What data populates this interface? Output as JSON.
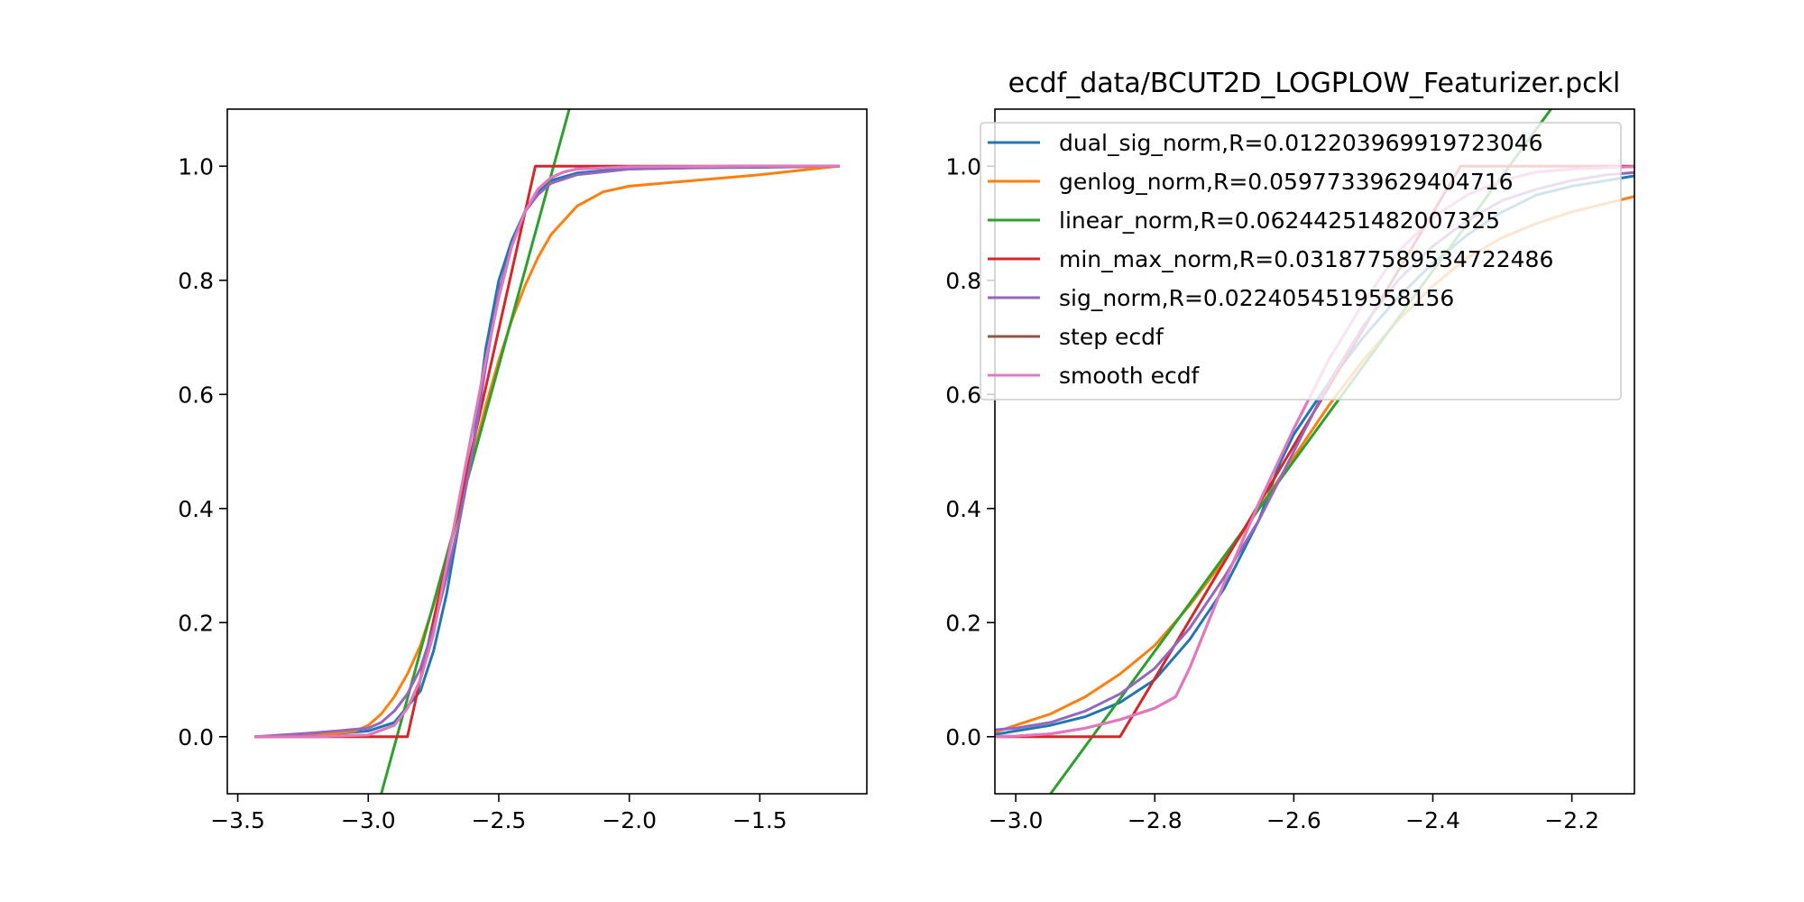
{
  "figure_title": "ecdf_data/BCUT2D_LOGPLOW_Featurizer.pckl",
  "colors": {
    "dual_sig_norm": "#1f77b4",
    "genlog_norm": "#ff7f0e",
    "linear_norm": "#2ca02c",
    "min_max_norm": "#d62728",
    "sig_norm": "#9467bd",
    "step_ecdf": "#8c564b",
    "smooth_ecdf": "#e377c2"
  },
  "chart_data": [
    {
      "type": "line",
      "title": "",
      "xlabel": "",
      "ylabel": "",
      "xlim": [
        -3.54,
        -1.09
      ],
      "ylim": [
        -0.1,
        1.1
      ],
      "xticks": [
        -3.5,
        -3.0,
        -2.5,
        -2.0,
        -1.5
      ],
      "xtick_labels": [
        "−3.5",
        "−3.0",
        "−2.5",
        "−2.0",
        "−1.5"
      ],
      "yticks": [
        0.0,
        0.2,
        0.4,
        0.6,
        0.8,
        1.0
      ],
      "ytick_labels": [
        "0.0",
        "0.2",
        "0.4",
        "0.6",
        "0.8",
        "1.0"
      ],
      "grid": false,
      "series": [
        {
          "key": "dual_sig_norm",
          "color": "#1f77b4",
          "x": [
            -3.43,
            -3.2,
            -3.0,
            -2.9,
            -2.8,
            -2.75,
            -2.7,
            -2.65,
            -2.6,
            -2.55,
            -2.5,
            -2.45,
            -2.4,
            -2.35,
            -2.3,
            -2.2,
            -2.1,
            -2.0,
            -1.8,
            -1.5,
            -1.2
          ],
          "y": [
            0.0,
            0.003,
            0.01,
            0.025,
            0.08,
            0.15,
            0.25,
            0.38,
            0.5,
            0.68,
            0.8,
            0.87,
            0.92,
            0.955,
            0.975,
            0.988,
            0.992,
            0.995,
            0.997,
            0.998,
            1.0
          ]
        },
        {
          "key": "genlog_norm",
          "color": "#ff7f0e",
          "x": [
            -3.43,
            -3.2,
            -3.05,
            -3.0,
            -2.95,
            -2.9,
            -2.85,
            -2.8,
            -2.75,
            -2.7,
            -2.65,
            -2.6,
            -2.55,
            -2.5,
            -2.45,
            -2.4,
            -2.35,
            -2.3,
            -2.2,
            -2.1,
            -2.0,
            -1.5,
            -1.2
          ],
          "y": [
            0.0,
            0.002,
            0.01,
            0.02,
            0.04,
            0.07,
            0.11,
            0.16,
            0.23,
            0.31,
            0.4,
            0.49,
            0.58,
            0.66,
            0.73,
            0.79,
            0.84,
            0.88,
            0.93,
            0.955,
            0.965,
            0.985,
            1.0
          ]
        },
        {
          "key": "linear_norm",
          "color": "#2ca02c",
          "x": [
            -2.95,
            -2.23
          ],
          "y": [
            -0.1,
            1.1
          ]
        },
        {
          "key": "min_max_norm",
          "color": "#d62728",
          "x": [
            -3.43,
            -2.85,
            -2.36,
            -1.2
          ],
          "y": [
            0.0,
            0.0,
            1.0,
            1.0
          ]
        },
        {
          "key": "sig_norm",
          "color": "#9467bd",
          "x": [
            -3.43,
            -3.2,
            -3.0,
            -2.95,
            -2.9,
            -2.85,
            -2.8,
            -2.75,
            -2.7,
            -2.65,
            -2.6,
            -2.55,
            -2.5,
            -2.45,
            -2.4,
            -2.35,
            -2.3,
            -2.2,
            -2.0,
            -1.5,
            -1.2
          ],
          "y": [
            0.0,
            0.007,
            0.015,
            0.025,
            0.045,
            0.075,
            0.12,
            0.19,
            0.28,
            0.38,
            0.5,
            0.65,
            0.78,
            0.86,
            0.92,
            0.95,
            0.97,
            0.985,
            0.995,
            0.999,
            1.0
          ]
        },
        {
          "key": "step_ecdf",
          "color": "#8c564b",
          "x": [
            -3.43,
            -3.2,
            -3.0,
            -2.9,
            -2.85,
            -2.8,
            -2.75,
            -2.7,
            -2.65,
            -2.6,
            -2.55,
            -2.5,
            -2.45,
            -2.4,
            -2.35,
            -2.3,
            -2.25,
            -2.2,
            -2.0,
            -1.5,
            -1.2
          ],
          "y": [
            0.0,
            0.0,
            0.003,
            0.02,
            0.05,
            0.1,
            0.18,
            0.3,
            0.42,
            0.54,
            0.66,
            0.77,
            0.86,
            0.92,
            0.96,
            0.98,
            0.99,
            0.995,
            0.999,
            1.0,
            1.0
          ]
        },
        {
          "key": "smooth_ecdf",
          "color": "#e377c2",
          "x": [
            -3.43,
            -3.2,
            -3.0,
            -2.9,
            -2.85,
            -2.8,
            -2.75,
            -2.7,
            -2.65,
            -2.6,
            -2.55,
            -2.5,
            -2.45,
            -2.4,
            -2.35,
            -2.3,
            -2.25,
            -2.2,
            -2.0,
            -1.5,
            -1.2
          ],
          "y": [
            0.0,
            0.0,
            0.003,
            0.02,
            0.05,
            0.1,
            0.18,
            0.3,
            0.42,
            0.54,
            0.66,
            0.77,
            0.86,
            0.92,
            0.96,
            0.98,
            0.99,
            0.995,
            0.999,
            1.0,
            1.0
          ]
        }
      ]
    },
    {
      "type": "line",
      "title": "ecdf_data/BCUT2D_LOGPLOW_Featurizer.pckl",
      "xlabel": "",
      "ylabel": "",
      "xlim": [
        -3.03,
        -2.11
      ],
      "ylim": [
        -0.1,
        1.1
      ],
      "xticks": [
        -3.0,
        -2.8,
        -2.6,
        -2.4,
        -2.2
      ],
      "xtick_labels": [
        "−3.0",
        "−2.8",
        "−2.6",
        "−2.4",
        "−2.2"
      ],
      "yticks": [
        0.0,
        0.2,
        0.4,
        0.6,
        0.8,
        1.0
      ],
      "ytick_labels": [
        "0.0",
        "0.2",
        "0.4",
        "0.6",
        "0.8",
        "1.0"
      ],
      "grid": false,
      "legend_position": "upper-left",
      "legend": [
        {
          "key": "dual_sig_norm",
          "label": "dual_sig_norm,R=0.012203969919723046",
          "color": "#1f77b4"
        },
        {
          "key": "genlog_norm",
          "label": "genlog_norm,R=0.05977339629404716",
          "color": "#ff7f0e"
        },
        {
          "key": "linear_norm",
          "label": "linear_norm,R=0.06244251482007325",
          "color": "#2ca02c"
        },
        {
          "key": "min_max_norm",
          "label": "min_max_norm,R=0.031877589534722486",
          "color": "#d62728"
        },
        {
          "key": "sig_norm",
          "label": "sig_norm,R=0.0224054519558156",
          "color": "#9467bd"
        },
        {
          "key": "step_ecdf",
          "label": "step ecdf",
          "color": "#8c564b"
        },
        {
          "key": "smooth_ecdf",
          "label": "smooth ecdf",
          "color": "#e377c2"
        }
      ],
      "series": [
        {
          "key": "dual_sig_norm",
          "color": "#1f77b4",
          "x": [
            -3.05,
            -3.0,
            -2.95,
            -2.9,
            -2.85,
            -2.8,
            -2.75,
            -2.7,
            -2.65,
            -2.62,
            -2.6,
            -2.55,
            -2.5,
            -2.45,
            -2.4,
            -2.35,
            -2.3,
            -2.25,
            -2.2,
            -2.15,
            -2.1
          ],
          "y": [
            0.0,
            0.01,
            0.02,
            0.035,
            0.06,
            0.1,
            0.17,
            0.26,
            0.38,
            0.48,
            0.53,
            0.62,
            0.7,
            0.77,
            0.83,
            0.88,
            0.92,
            0.95,
            0.965,
            0.975,
            0.985
          ]
        },
        {
          "key": "genlog_norm",
          "color": "#ff7f0e",
          "x": [
            -3.05,
            -3.0,
            -2.95,
            -2.9,
            -2.85,
            -2.8,
            -2.75,
            -2.7,
            -2.65,
            -2.6,
            -2.55,
            -2.5,
            -2.45,
            -2.4,
            -2.35,
            -2.3,
            -2.25,
            -2.2,
            -2.15,
            -2.1
          ],
          "y": [
            0.0,
            0.02,
            0.04,
            0.07,
            0.11,
            0.16,
            0.23,
            0.31,
            0.4,
            0.49,
            0.58,
            0.66,
            0.73,
            0.79,
            0.84,
            0.875,
            0.9,
            0.92,
            0.935,
            0.95
          ]
        },
        {
          "key": "linear_norm",
          "color": "#2ca02c",
          "x": [
            -2.95,
            -2.23
          ],
          "y": [
            -0.1,
            1.1
          ]
        },
        {
          "key": "min_max_norm",
          "color": "#d62728",
          "x": [
            -3.05,
            -2.85,
            -2.36,
            -2.1
          ],
          "y": [
            0.0,
            0.0,
            1.0,
            1.0
          ]
        },
        {
          "key": "sig_norm",
          "color": "#9467bd",
          "x": [
            -3.05,
            -3.0,
            -2.95,
            -2.9,
            -2.85,
            -2.8,
            -2.75,
            -2.7,
            -2.65,
            -2.6,
            -2.55,
            -2.5,
            -2.45,
            -2.4,
            -2.35,
            -2.3,
            -2.25,
            -2.2,
            -2.15,
            -2.1
          ],
          "y": [
            0.01,
            0.015,
            0.025,
            0.045,
            0.075,
            0.12,
            0.19,
            0.28,
            0.38,
            0.5,
            0.62,
            0.72,
            0.8,
            0.86,
            0.905,
            0.94,
            0.96,
            0.975,
            0.985,
            0.99
          ]
        },
        {
          "key": "step_ecdf",
          "color": "#8c564b",
          "x": [
            -3.05,
            -3.0,
            -2.95,
            -2.9,
            -2.85,
            -2.8,
            -2.77,
            -2.75,
            -2.7,
            -2.65,
            -2.6,
            -2.55,
            -2.5,
            -2.45,
            -2.4,
            -2.35,
            -2.3,
            -2.25,
            -2.2,
            -2.1
          ],
          "y": [
            0.0,
            0.001,
            0.005,
            0.015,
            0.03,
            0.05,
            0.07,
            0.12,
            0.27,
            0.41,
            0.54,
            0.66,
            0.76,
            0.85,
            0.91,
            0.95,
            0.975,
            0.99,
            0.995,
            1.0
          ]
        },
        {
          "key": "smooth_ecdf",
          "color": "#e377c2",
          "x": [
            -3.05,
            -3.0,
            -2.95,
            -2.9,
            -2.85,
            -2.8,
            -2.77,
            -2.75,
            -2.7,
            -2.65,
            -2.6,
            -2.55,
            -2.5,
            -2.45,
            -2.4,
            -2.35,
            -2.3,
            -2.25,
            -2.2,
            -2.1
          ],
          "y": [
            0.0,
            0.001,
            0.005,
            0.015,
            0.03,
            0.05,
            0.07,
            0.12,
            0.27,
            0.41,
            0.54,
            0.66,
            0.76,
            0.85,
            0.91,
            0.95,
            0.975,
            0.99,
            0.995,
            1.0
          ]
        }
      ]
    }
  ]
}
